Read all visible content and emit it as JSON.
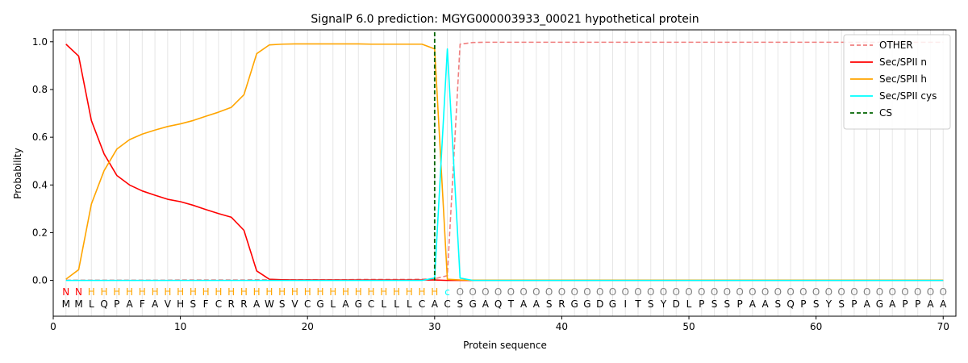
{
  "chart_data": {
    "type": "line",
    "title": "SignalP 6.0 prediction: MGYG000003933_00021 hypothetical protein",
    "xlabel": "Protein sequence",
    "ylabel": "Probability",
    "xlim": [
      0,
      71
    ],
    "ylim": [
      -0.15,
      1.05
    ],
    "xticks": [
      0,
      10,
      20,
      30,
      40,
      50,
      60,
      70
    ],
    "yticks": [
      0.0,
      0.2,
      0.4,
      0.6,
      0.8,
      1.0
    ],
    "ytick_labels": [
      "0.0",
      "0.2",
      "0.4",
      "0.6",
      "0.8",
      "1.0"
    ],
    "grid": "vertical lines at each residue",
    "legend_position": "top-right",
    "sequence": [
      "M",
      "M",
      "L",
      "Q",
      "P",
      "A",
      "F",
      "A",
      "V",
      "H",
      "S",
      "F",
      "C",
      "R",
      "R",
      "A",
      "W",
      "S",
      "V",
      "C",
      "G",
      "L",
      "A",
      "G",
      "C",
      "L",
      "L",
      "L",
      "C",
      "A",
      "C",
      "S",
      "G",
      "A",
      "Q",
      "T",
      "A",
      "A",
      "S",
      "R",
      "G",
      "G",
      "D",
      "G",
      "I",
      "T",
      "S",
      "Y",
      "D",
      "L",
      "P",
      "S",
      "S",
      "P",
      "A",
      "A",
      "S",
      "Q",
      "P",
      "S",
      "Y",
      "S",
      "P",
      "A",
      "G",
      "A",
      "P",
      "P",
      "A",
      "A"
    ],
    "annotations": [
      "N",
      "N",
      "H",
      "H",
      "H",
      "H",
      "H",
      "H",
      "H",
      "H",
      "H",
      "H",
      "H",
      "H",
      "H",
      "H",
      "H",
      "H",
      "H",
      "H",
      "H",
      "H",
      "H",
      "H",
      "H",
      "H",
      "H",
      "H",
      "H",
      "H",
      "C",
      "O",
      "O",
      "O",
      "O",
      "O",
      "O",
      "O",
      "O",
      "O",
      "O",
      "O",
      "O",
      "O",
      "O",
      "O",
      "O",
      "O",
      "O",
      "O",
      "O",
      "O",
      "O",
      "O",
      "O",
      "O",
      "O",
      "O",
      "O",
      "O",
      "O",
      "O",
      "O",
      "O",
      "O",
      "O",
      "O",
      "O",
      "O",
      "O"
    ],
    "annotation_colors": {
      "N": "#ff0000",
      "H": "#ffa500",
      "C": "#00ffff",
      "O": "#808080"
    },
    "cleavage_site": 30,
    "series": [
      {
        "name": "OTHER",
        "color": "#f08080",
        "dash": "dashed",
        "values": [
          0.001,
          0.001,
          0.001,
          0.001,
          0.001,
          0.001,
          0.001,
          0.001,
          0.001,
          0.002,
          0.002,
          0.002,
          0.002,
          0.002,
          0.002,
          0.003,
          0.003,
          0.003,
          0.003,
          0.003,
          0.003,
          0.003,
          0.003,
          0.004,
          0.004,
          0.004,
          0.004,
          0.004,
          0.005,
          0.007,
          0.02,
          0.99,
          0.997,
          0.998,
          0.998,
          0.998,
          0.998,
          0.998,
          0.998,
          0.998,
          0.998,
          0.998,
          0.998,
          0.998,
          0.998,
          0.998,
          0.998,
          0.998,
          0.998,
          0.998,
          0.998,
          0.998,
          0.998,
          0.998,
          0.998,
          0.998,
          0.998,
          0.998,
          0.998,
          0.998,
          0.998,
          0.998,
          0.998,
          0.998,
          0.998,
          0.998,
          0.998,
          0.998,
          0.998,
          0.998
        ]
      },
      {
        "name": "Sec/SPII n",
        "color": "#ff0000",
        "dash": "solid",
        "values": [
          0.99,
          0.94,
          0.67,
          0.53,
          0.44,
          0.4,
          0.375,
          0.357,
          0.34,
          0.33,
          0.315,
          0.297,
          0.28,
          0.265,
          0.21,
          0.04,
          0.005,
          0.003,
          0.002,
          0.002,
          0.002,
          0.002,
          0.002,
          0.002,
          0.002,
          0.002,
          0.002,
          0.002,
          0.002,
          0.002,
          0.0,
          0.0,
          0.0,
          0.0,
          0.0,
          0.0,
          0.0,
          0.0,
          0.0,
          0.0,
          0.0,
          0.0,
          0.0,
          0.0,
          0.0,
          0.0,
          0.0,
          0.0,
          0.0,
          0.0,
          0.0,
          0.0,
          0.0,
          0.0,
          0.0,
          0.0,
          0.0,
          0.0,
          0.0,
          0.0,
          0.0,
          0.0,
          0.0,
          0.0,
          0.0,
          0.0,
          0.0,
          0.0,
          0.0,
          0.0
        ]
      },
      {
        "name": "Sec/SPII h",
        "color": "#ffa500",
        "dash": "solid",
        "values": [
          0.005,
          0.045,
          0.32,
          0.46,
          0.55,
          0.59,
          0.613,
          0.63,
          0.645,
          0.656,
          0.67,
          0.688,
          0.705,
          0.725,
          0.778,
          0.95,
          0.987,
          0.99,
          0.991,
          0.991,
          0.991,
          0.991,
          0.991,
          0.991,
          0.99,
          0.99,
          0.99,
          0.99,
          0.99,
          0.97,
          0.005,
          0.002,
          0.001,
          0.001,
          0.001,
          0.001,
          0.001,
          0.001,
          0.001,
          0.001,
          0.001,
          0.001,
          0.001,
          0.001,
          0.001,
          0.001,
          0.001,
          0.001,
          0.001,
          0.001,
          0.001,
          0.001,
          0.001,
          0.001,
          0.001,
          0.001,
          0.001,
          0.001,
          0.001,
          0.001,
          0.001,
          0.001,
          0.001,
          0.001,
          0.001,
          0.001,
          0.001,
          0.001,
          0.001,
          0.001
        ]
      },
      {
        "name": "Sec/SPII cys",
        "color": "#00ffff",
        "dash": "solid",
        "values": [
          0.0,
          0.0,
          0.0,
          0.0,
          0.0,
          0.0,
          0.0,
          0.0,
          0.0,
          0.0,
          0.0,
          0.0,
          0.0,
          0.0,
          0.0,
          0.0,
          0.0,
          0.0,
          0.0,
          0.0,
          0.0,
          0.0,
          0.0,
          0.0,
          0.0,
          0.0,
          0.0,
          0.0,
          0.0,
          0.01,
          0.97,
          0.01,
          0.0,
          0.0,
          0.0,
          0.0,
          0.0,
          0.0,
          0.0,
          0.0,
          0.0,
          0.0,
          0.0,
          0.0,
          0.0,
          0.0,
          0.0,
          0.0,
          0.0,
          0.0,
          0.0,
          0.0,
          0.0,
          0.0,
          0.0,
          0.0,
          0.0,
          0.0,
          0.0,
          0.0,
          0.0,
          0.0,
          0.0,
          0.0,
          0.0,
          0.0,
          0.0,
          0.0,
          0.0,
          0.0
        ]
      }
    ],
    "legend": [
      {
        "label": "OTHER",
        "color": "#f08080",
        "dash": "dashed"
      },
      {
        "label": "Sec/SPII n",
        "color": "#ff0000",
        "dash": "solid"
      },
      {
        "label": "Sec/SPII h",
        "color": "#ffa500",
        "dash": "solid"
      },
      {
        "label": "Sec/SPII cys",
        "color": "#00ffff",
        "dash": "solid"
      },
      {
        "label": "CS",
        "color": "#006400",
        "dash": "dashed"
      }
    ]
  }
}
